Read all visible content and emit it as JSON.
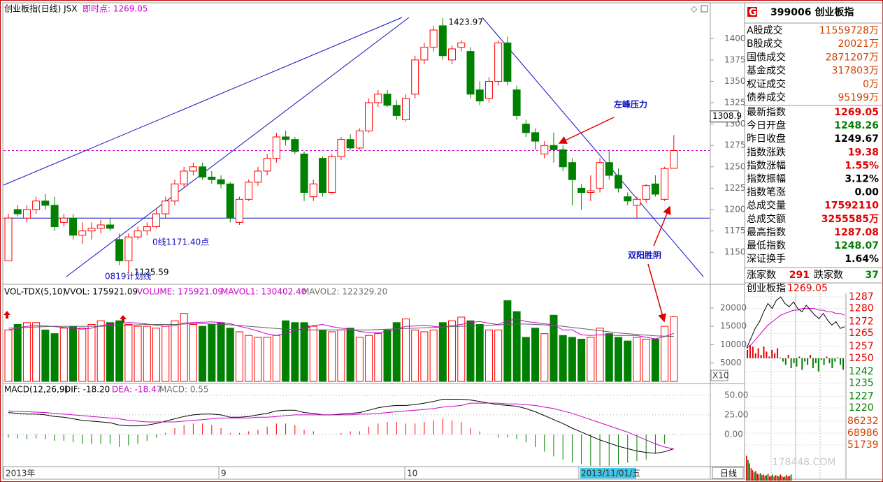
{
  "header": {
    "title": "创业板指(日线) JSX",
    "realtime": "即时点: 1269.05"
  },
  "price_chart": {
    "type": "candlestick",
    "up_color": "#ff0000",
    "down_color": "#008000",
    "ylim": [
      1115,
      1428
    ],
    "yticks": [
      1400,
      1375,
      1350,
      1325,
      1300,
      1275,
      1250,
      1225,
      1200,
      1175,
      1150
    ],
    "cursor_value": 1308.9,
    "reference_line": 1269.05,
    "support_line": 1190,
    "annotations": {
      "high": "1423.97",
      "low": "1125.59",
      "support": "0线1171.40点",
      "plan": "0819计划线",
      "resistance": "左峰压力",
      "pattern": "双阳胜阴"
    },
    "candles": [
      [
        1140,
        1195,
        1140,
        1190
      ],
      [
        1200,
        1205,
        1192,
        1195
      ],
      [
        1190,
        1205,
        1185,
        1200
      ],
      [
        1200,
        1215,
        1195,
        1210
      ],
      [
        1210,
        1218,
        1200,
        1205
      ],
      [
        1205,
        1215,
        1175,
        1180
      ],
      [
        1185,
        1195,
        1180,
        1190
      ],
      [
        1190,
        1195,
        1165,
        1170
      ],
      [
        1170,
        1185,
        1160,
        1175
      ],
      [
        1175,
        1185,
        1165,
        1178
      ],
      [
        1178,
        1188,
        1172,
        1182
      ],
      [
        1182,
        1190,
        1175,
        1178
      ],
      [
        1165,
        1172,
        1135,
        1140
      ],
      [
        1140,
        1172,
        1125.59,
        1168
      ],
      [
        1168,
        1180,
        1165,
        1175
      ],
      [
        1175,
        1185,
        1170,
        1180
      ],
      [
        1180,
        1200,
        1178,
        1195
      ],
      [
        1195,
        1215,
        1190,
        1210
      ],
      [
        1210,
        1235,
        1205,
        1230
      ],
      [
        1230,
        1250,
        1225,
        1245
      ],
      [
        1245,
        1255,
        1240,
        1250
      ],
      [
        1250,
        1255,
        1235,
        1238
      ],
      [
        1238,
        1245,
        1230,
        1235
      ],
      [
        1235,
        1240,
        1225,
        1230
      ],
      [
        1230,
        1232,
        1185,
        1190
      ],
      [
        1185,
        1215,
        1182,
        1212
      ],
      [
        1212,
        1235,
        1210,
        1232
      ],
      [
        1232,
        1250,
        1228,
        1245
      ],
      [
        1245,
        1265,
        1240,
        1260
      ],
      [
        1260,
        1290,
        1255,
        1285
      ],
      [
        1285,
        1292,
        1275,
        1282
      ],
      [
        1282,
        1285,
        1265,
        1268
      ],
      [
        1265,
        1268,
        1210,
        1220
      ],
      [
        1215,
        1235,
        1210,
        1230
      ],
      [
        1260,
        1262,
        1215,
        1220
      ],
      [
        1220,
        1265,
        1218,
        1262
      ],
      [
        1262,
        1285,
        1258,
        1282
      ],
      [
        1282,
        1288,
        1270,
        1272
      ],
      [
        1272,
        1295,
        1270,
        1292
      ],
      [
        1292,
        1330,
        1290,
        1325
      ],
      [
        1325,
        1340,
        1320,
        1335
      ],
      [
        1335,
        1340,
        1320,
        1322
      ],
      [
        1322,
        1328,
        1305,
        1310
      ],
      [
        1305,
        1335,
        1303,
        1330
      ],
      [
        1335,
        1380,
        1330,
        1375
      ],
      [
        1375,
        1395,
        1370,
        1390
      ],
      [
        1390,
        1415,
        1385,
        1410
      ],
      [
        1415,
        1423.97,
        1375,
        1380
      ],
      [
        1375,
        1392,
        1370,
        1388
      ],
      [
        1390,
        1398,
        1385,
        1395
      ],
      [
        1385,
        1390,
        1330,
        1335
      ],
      [
        1340,
        1350,
        1322,
        1327
      ],
      [
        1330,
        1355,
        1325,
        1350
      ],
      [
        1350,
        1398,
        1345,
        1395
      ],
      [
        1395,
        1402,
        1345,
        1350
      ],
      [
        1340,
        1345,
        1305,
        1310
      ],
      [
        1300,
        1305,
        1285,
        1290
      ],
      [
        1290,
        1295,
        1270,
        1280
      ],
      [
        1265,
        1280,
        1260,
        1275
      ],
      [
        1275,
        1290,
        1255,
        1270
      ],
      [
        1270,
        1275,
        1245,
        1250
      ],
      [
        1255,
        1260,
        1205,
        1235
      ],
      [
        1225,
        1230,
        1200,
        1220
      ],
      [
        1220,
        1240,
        1210,
        1222
      ],
      [
        1225,
        1260,
        1220,
        1255
      ],
      [
        1255,
        1270,
        1235,
        1240
      ],
      [
        1240,
        1248,
        1220,
        1225
      ],
      [
        1215,
        1220,
        1205,
        1210
      ],
      [
        1205,
        1215,
        1190,
        1212
      ],
      [
        1212,
        1230,
        1208,
        1228
      ],
      [
        1230,
        1240,
        1215,
        1218
      ],
      [
        1212,
        1250,
        1210,
        1248
      ],
      [
        1248.26,
        1287.08,
        1248.07,
        1269.05
      ]
    ]
  },
  "volume_chart": {
    "type": "bar",
    "legend": [
      {
        "text": "VOL-TDX(5,10)",
        "color": "#000000"
      },
      {
        "text": "VVOL: 175921.09",
        "color": "#000000"
      },
      {
        "text": "VOLUME: 175921.09",
        "color": "#cc00cc"
      },
      {
        "text": "MAVOL1: 130402.40",
        "color": "#cc00cc"
      },
      {
        "text": "MAVOL2: 122329.20",
        "color": "#707070"
      }
    ],
    "ylim": [
      0,
      23000
    ],
    "yticks": [
      20000,
      15000,
      10000,
      5000
    ],
    "scale_label": "X10",
    "mavol1_color": "#cc00cc",
    "mavol2_color": "#606060",
    "values": [
      14000,
      15500,
      16000,
      16000,
      14000,
      13000,
      14500,
      15000,
      14500,
      15500,
      16500,
      16000,
      16500,
      15500,
      15000,
      15000,
      14500,
      15000,
      16500,
      18500,
      15500,
      15000,
      15500,
      16000,
      14500,
      13500,
      12500,
      12000,
      12000,
      12500,
      16500,
      16000,
      16000,
      15000,
      14000,
      13500,
      14000,
      14500,
      12000,
      12500,
      13000,
      14000,
      16000,
      17000,
      14000,
      13500,
      14000,
      16000,
      16500,
      17500,
      16500,
      15500,
      14000,
      14000,
      22000,
      19000,
      12000,
      14500,
      13000,
      18000,
      12500,
      12000,
      11500,
      12000,
      14500,
      13000,
      12000,
      11000,
      12000,
      11500,
      11500,
      15000,
      17592.11
    ],
    "mavol1": [
      14000,
      14500,
      15000,
      15200,
      15100,
      14900,
      14700,
      14500,
      14200,
      14500,
      15200,
      15500,
      15800,
      16000,
      15900,
      15600,
      15300,
      15000,
      15200,
      15900,
      16000,
      16100,
      16200,
      16000,
      15700,
      15000,
      14400,
      13700,
      12900,
      12500,
      13100,
      13800,
      14500,
      15200,
      15500,
      14900,
      14500,
      14200,
      13600,
      13300,
      13300,
      13600,
      14300,
      15000,
      15100,
      15300,
      15000,
      14700,
      15200,
      15500,
      16000,
      16300,
      15800,
      15500,
      16500,
      17000,
      16300,
      16000,
      15700,
      15300,
      14000,
      14000,
      12700,
      12500,
      12700,
      12600,
      12500,
      12500,
      12500,
      12000,
      11600,
      12200,
      13040.24
    ],
    "mavol2": [
      14500,
      14600,
      14700,
      14800,
      14900,
      15000,
      15000,
      15000,
      15000,
      15000,
      15000,
      15100,
      15200,
      15300,
      15400,
      15500,
      15500,
      15500,
      15500,
      15600,
      15700,
      15700,
      15600,
      15500,
      15400,
      15200,
      15000,
      14800,
      14600,
      14400,
      14200,
      14100,
      14000,
      14000,
      14000,
      14000,
      14000,
      14000,
      14000,
      14000,
      14100,
      14200,
      14300,
      14400,
      14500,
      14600,
      14700,
      14800,
      14900,
      15000,
      15100,
      15200,
      15300,
      15400,
      15500,
      15600,
      15600,
      15500,
      15400,
      15200,
      15000,
      14700,
      14400,
      14100,
      13800,
      13500,
      13200,
      13000,
      12800,
      12600,
      12400,
      12300,
      12232.92
    ]
  },
  "macd_chart": {
    "type": "macd",
    "legend": [
      {
        "text": "MACD(12,26,9)",
        "color": "#000000"
      },
      {
        "text": "DIF: -18.20",
        "color": "#000000"
      },
      {
        "text": "DEA: -18.47",
        "color": "#cc00cc"
      },
      {
        "text": "MACD: 0.55",
        "color": "#707070"
      }
    ],
    "ylim": [
      -41,
      57
    ],
    "yticks": [
      {
        "value": 50,
        "label": "50.00"
      },
      {
        "value": 25,
        "label": "25.00"
      },
      {
        "value": 0,
        "label": "0.00"
      }
    ],
    "dif_color": "#000000",
    "dea_color": "#cc00cc",
    "dif": [
      28,
      27,
      26,
      26,
      25,
      23,
      22,
      20,
      18,
      17,
      16,
      15,
      12,
      11,
      11,
      12,
      14,
      17,
      20,
      23,
      25,
      26,
      26,
      25,
      22,
      22,
      23,
      25,
      27,
      30,
      31,
      31,
      28,
      27,
      25,
      25,
      26,
      27,
      28,
      31,
      34,
      36,
      37,
      37,
      38,
      40,
      42,
      45,
      45,
      45,
      44,
      42,
      40,
      38,
      37,
      36,
      33,
      29,
      24,
      19,
      14,
      8,
      3,
      -2,
      -7,
      -11,
      -15,
      -18,
      -21,
      -23,
      -24,
      -22,
      -18.2
    ],
    "dea": [
      30,
      29.5,
      29,
      28.5,
      28,
      27,
      26,
      25,
      24,
      23,
      22,
      21,
      20,
      18,
      17,
      16,
      16,
      16,
      16,
      17,
      18,
      19,
      20,
      21,
      21,
      21,
      21,
      22,
      22,
      23,
      24,
      25,
      25,
      25,
      25,
      25,
      25,
      25,
      26,
      26,
      27,
      28,
      29,
      30,
      31,
      32,
      33,
      35,
      36,
      37,
      40,
      40,
      40,
      40,
      39,
      39,
      38,
      37,
      35,
      33,
      30,
      27,
      23,
      19,
      15,
      11,
      7,
      3,
      -2,
      -7,
      -12,
      -16,
      -18.47
    ],
    "macd": [
      -4,
      -5,
      -6,
      -5,
      -6,
      -8,
      -8,
      -10,
      -12,
      -12,
      -12,
      -12,
      -16,
      -14,
      -12,
      -8,
      -4,
      2,
      8,
      12,
      14,
      14,
      12,
      8,
      2,
      2,
      4,
      6,
      10,
      14,
      14,
      12,
      6,
      4,
      0,
      0,
      2,
      4,
      4,
      10,
      14,
      16,
      16,
      14,
      14,
      16,
      18,
      20,
      18,
      16,
      8,
      4,
      0,
      -4,
      -4,
      -6,
      -10,
      -16,
      -22,
      -28,
      -32,
      -36,
      -38,
      -40,
      -40,
      -40,
      -38,
      -36,
      -34,
      -32,
      -24,
      -12,
      0.55
    ]
  },
  "date_axis": [
    "2013年",
    "9",
    "10",
    "2013/11/01/五"
  ],
  "period_label": "日线",
  "info_panel": {
    "badge": "G",
    "title": "399006 创业板指",
    "trade_rows": [
      [
        "A股成交",
        "11559728万"
      ],
      [
        "B股成交",
        "20021万"
      ],
      [
        "国债成交",
        "2871207万"
      ],
      [
        "基金成交",
        "317803万"
      ],
      [
        "权证成交",
        "0万"
      ],
      [
        "债券成交",
        "95199万"
      ]
    ],
    "index_rows": [
      {
        "label": "最新指数",
        "value": "1269.05",
        "color": "#e00000"
      },
      {
        "label": "今日开盘",
        "value": "1248.26",
        "color": "#008000"
      },
      {
        "label": "昨日收盘",
        "value": "1249.67",
        "color": "#000000"
      },
      {
        "label": "指数涨跌",
        "value": "19.38",
        "color": "#e00000"
      },
      {
        "label": "指数涨幅",
        "value": "1.55%",
        "color": "#e00000"
      },
      {
        "label": "指数振幅",
        "value": "3.12%",
        "color": "#000000"
      },
      {
        "label": "指数笔涨",
        "value": "0.00",
        "color": "#000000"
      },
      {
        "label": "总成交量",
        "value": "17592110",
        "color": "#e00000"
      },
      {
        "label": "总成交额",
        "value": "3255585万",
        "color": "#e00000"
      },
      {
        "label": "最高指数",
        "value": "1287.08",
        "color": "#e00000"
      },
      {
        "label": "最低指数",
        "value": "1248.07",
        "color": "#008000"
      },
      {
        "label": "深证换手",
        "value": "1.64%",
        "color": "#000000"
      }
    ],
    "breadth": {
      "up_label": "涨家数",
      "up": 291,
      "down_label": "跌家数",
      "down": 37
    }
  },
  "mini_chart": {
    "title": "创业板指",
    "last": "1269.05",
    "prev_close": 1249.67,
    "ylim": [
      1220,
      1287
    ],
    "yticks": [
      1287,
      1280,
      1272,
      1265,
      1257,
      1250,
      1242,
      1235,
      1227,
      1220
    ],
    "vol_ylim": [
      0,
      86232
    ],
    "vol_ticks": [
      86232,
      68986,
      51739
    ],
    "price_color": "#000000",
    "avg_color": "#cc00cc",
    "price": [
      1256,
      1262,
      1268,
      1272,
      1278,
      1283,
      1280,
      1285,
      1287,
      1283,
      1281,
      1284,
      1280,
      1278,
      1282,
      1279,
      1276,
      1274,
      1277,
      1273,
      1270,
      1272,
      1268,
      1269.05
    ],
    "avg": [
      1256,
      1258,
      1261,
      1264,
      1267,
      1270,
      1272,
      1274,
      1276,
      1277,
      1278,
      1279,
      1279,
      1280,
      1280,
      1280,
      1280,
      1279,
      1279,
      1278,
      1278,
      1277,
      1277,
      1276
    ],
    "breadth_base": 1250,
    "breadth": [
      1255,
      1258,
      1257,
      1253,
      1256,
      1252,
      1257,
      1254,
      1251,
      1255,
      1253,
      1256,
      1250.5,
      1248,
      1246,
      1252,
      1244,
      1247,
      1245,
      1251,
      1243,
      1248,
      1246,
      1252,
      1244,
      1247,
      1242,
      1249,
      1246,
      1251,
      1247,
      1244,
      1248,
      1250.5,
      1246,
      1243
    ],
    "volume": [
      36000,
      30000,
      25000,
      18000,
      15000,
      12000,
      14000,
      10000,
      9000,
      11000,
      8000,
      9000,
      7000,
      8000,
      10000,
      6000,
      7000,
      9000,
      6000,
      8000,
      7000,
      6000,
      9000,
      7000,
      5000,
      6000,
      8000,
      6000,
      7000,
      9000
    ]
  },
  "watermark": "178448.COM"
}
